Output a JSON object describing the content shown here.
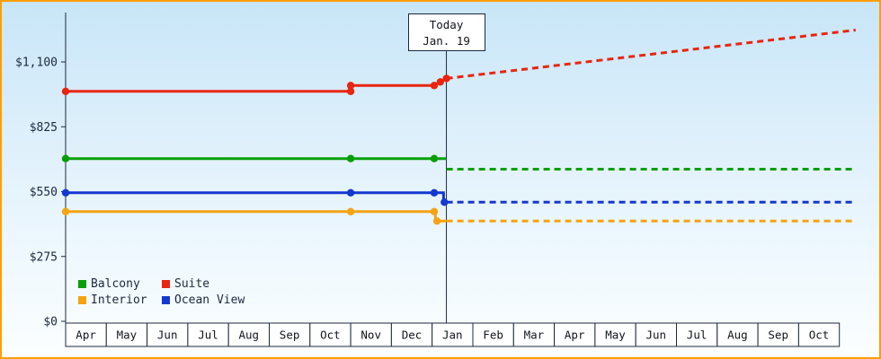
{
  "window": {
    "frame_border_color": "#ff9e00",
    "background_top_color": "#c8e6f8",
    "background_bottom_color": "#fbfeff"
  },
  "chart_data": {
    "type": "line",
    "description": "Price history and forecast lines per cabin category with a Today marker",
    "grid": false,
    "legend_position": "bottom-left-inside",
    "y_axis": {
      "ticks": [
        {
          "label": "$0",
          "value": 0
        },
        {
          "label": "$275",
          "value": 275
        },
        {
          "label": "$550",
          "value": 550
        },
        {
          "label": "$825",
          "value": 825
        },
        {
          "label": "$1,100",
          "value": 1100
        }
      ],
      "ylim": [
        0,
        1100
      ]
    },
    "x_axis": {
      "months": [
        "Apr",
        "May",
        "Jun",
        "Jul",
        "Aug",
        "Sep",
        "Oct",
        "Nov",
        "Dec",
        "Jan",
        "Feb",
        "Mar",
        "Apr",
        "May",
        "Jun",
        "Jul",
        "Aug",
        "Sep",
        "Oct"
      ]
    },
    "today": {
      "line1": "Today",
      "line2": "Jan. 19",
      "x_units": 9.35
    },
    "series": [
      {
        "name": "Suite",
        "color": "#e8250f",
        "history": [
          [
            0,
            975
          ],
          [
            7,
            975
          ],
          [
            7,
            1000
          ],
          [
            9.05,
            1000
          ],
          [
            9.2,
            1015
          ],
          [
            9.35,
            1030
          ]
        ],
        "points": [
          [
            0,
            975
          ],
          [
            7,
            975
          ],
          [
            7,
            1000
          ],
          [
            9.05,
            1000
          ],
          [
            9.2,
            1015
          ],
          [
            9.35,
            1030
          ]
        ],
        "forecast": [
          [
            9.35,
            1030
          ],
          [
            19.4,
            1235
          ]
        ]
      },
      {
        "name": "Balcony",
        "color": "#089e08",
        "history": [
          [
            0,
            690
          ],
          [
            9.35,
            690
          ]
        ],
        "points": [
          [
            0,
            690
          ],
          [
            7,
            690
          ],
          [
            9.05,
            690
          ]
        ],
        "forecast": [
          [
            9.35,
            645
          ],
          [
            19.4,
            645
          ]
        ]
      },
      {
        "name": "Interior",
        "color": "#f4a313",
        "history": [
          [
            0,
            465
          ],
          [
            9.08,
            465
          ],
          [
            9.08,
            425
          ],
          [
            9.35,
            425
          ]
        ],
        "points": [
          [
            0,
            465
          ],
          [
            7,
            465
          ],
          [
            9.05,
            465
          ],
          [
            9.12,
            425
          ]
        ],
        "forecast": [
          [
            9.35,
            425
          ],
          [
            19.4,
            425
          ]
        ]
      },
      {
        "name": "Ocean View",
        "color": "#1538cf",
        "history": [
          [
            0,
            545
          ],
          [
            9.28,
            545
          ],
          [
            9.28,
            505
          ],
          [
            9.35,
            505
          ]
        ],
        "points": [
          [
            0,
            545
          ],
          [
            7,
            545
          ],
          [
            9.05,
            545
          ],
          [
            9.3,
            505
          ]
        ],
        "forecast": [
          [
            9.35,
            505
          ],
          [
            19.4,
            505
          ]
        ]
      }
    ],
    "legend_order": [
      "Balcony",
      "Suite",
      "Interior",
      "Ocean View"
    ]
  }
}
